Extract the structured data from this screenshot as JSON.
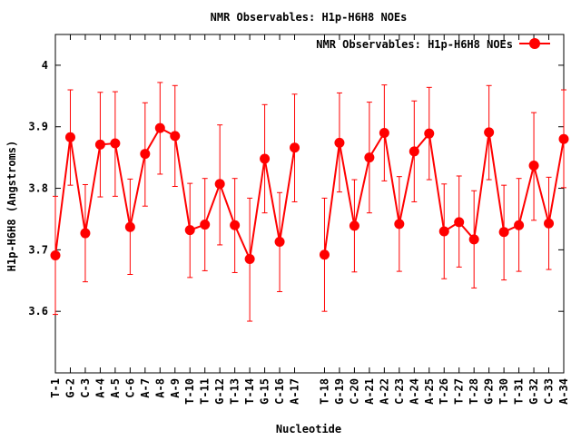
{
  "chart_data": {
    "type": "line",
    "title": "NMR Observables: H1p-H6H8 NOEs",
    "xlabel": "Nucleotide",
    "ylabel": "H1p-H6H8 (Angstroms)",
    "ylim": [
      3.5,
      4.05
    ],
    "yticks": [
      "3.6",
      "3.7",
      "3.8",
      "3.9",
      "4"
    ],
    "ytick_values": [
      3.6,
      3.7,
      3.8,
      3.9,
      4.0
    ],
    "grid": false,
    "legend_position": "top-right",
    "color": "#ff0000",
    "series": [
      {
        "name": "NMR Observables: H1p-H6H8 NOEs",
        "segments": [
          {
            "categories": [
              "T-1",
              "G-2",
              "C-3",
              "A-4",
              "A-5",
              "C-6",
              "A-7",
              "A-8",
              "A-9",
              "T-10",
              "T-11",
              "G-12",
              "T-13",
              "T-14",
              "G-15",
              "C-16",
              "A-17"
            ],
            "values": [
              3.691,
              3.883,
              3.727,
              3.871,
              3.873,
              3.737,
              3.856,
              3.898,
              3.885,
              3.732,
              3.741,
              3.807,
              3.74,
              3.685,
              3.848,
              3.713,
              3.866
            ],
            "err_low": [
              3.595,
              3.805,
              3.648,
              3.786,
              3.787,
              3.66,
              3.771,
              3.823,
              3.803,
              3.655,
              3.666,
              3.708,
              3.663,
              3.584,
              3.76,
              3.632,
              3.778
            ],
            "err_high": [
              3.787,
              3.96,
              3.806,
              3.956,
              3.957,
              3.815,
              3.939,
              3.972,
              3.967,
              3.808,
              3.816,
              3.903,
              3.816,
              3.784,
              3.936,
              3.793,
              3.953
            ]
          },
          {
            "categories": [
              "T-18",
              "G-19",
              "C-20",
              "A-21",
              "A-22",
              "C-23",
              "A-24",
              "A-25",
              "T-26",
              "T-27",
              "T-28",
              "G-29",
              "T-30",
              "T-31",
              "G-32",
              "C-33",
              "A-34"
            ],
            "values": [
              3.692,
              3.874,
              3.739,
              3.85,
              3.89,
              3.742,
              3.86,
              3.889,
              3.73,
              3.745,
              3.717,
              3.891,
              3.729,
              3.74,
              3.837,
              3.743,
              3.88
            ],
            "err_low": [
              3.6,
              3.794,
              3.664,
              3.76,
              3.812,
              3.665,
              3.778,
              3.814,
              3.653,
              3.672,
              3.638,
              3.814,
              3.651,
              3.665,
              3.748,
              3.668,
              3.801
            ],
            "err_high": [
              3.784,
              3.955,
              3.814,
              3.94,
              3.968,
              3.819,
              3.942,
              3.964,
              3.807,
              3.82,
              3.796,
              3.967,
              3.805,
              3.816,
              3.923,
              3.818,
              3.96
            ]
          }
        ]
      }
    ]
  }
}
